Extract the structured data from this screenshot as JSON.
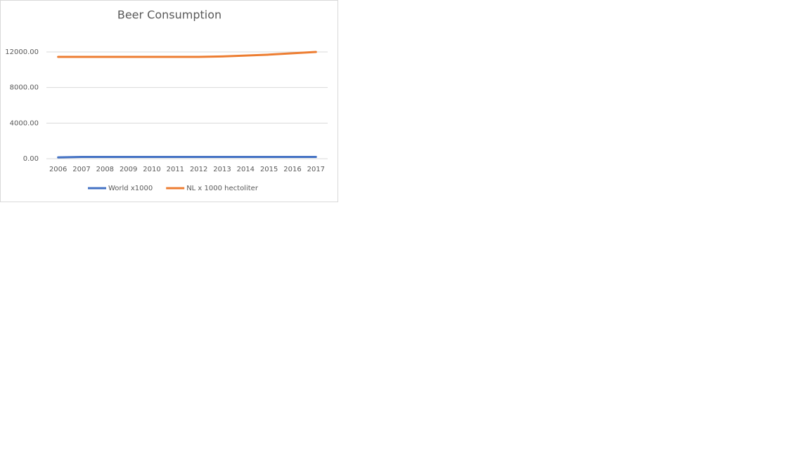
{
  "chart_data": {
    "type": "line",
    "title": "Beer Consumption",
    "categories": [
      "2006",
      "2007",
      "2008",
      "2009",
      "2010",
      "2011",
      "2012",
      "2013",
      "2014",
      "2015",
      "2016",
      "2017"
    ],
    "series": [
      {
        "name": "World x1000",
        "color": "#4472c4",
        "values": [
          150,
          200,
          200,
          200,
          200,
          200,
          200,
          200,
          200,
          200,
          200,
          200
        ]
      },
      {
        "name": "NL x 1000 hectoliter",
        "color": "#ed7d31",
        "values": [
          11450,
          11450,
          11450,
          11450,
          11450,
          11450,
          11450,
          11500,
          11600,
          11700,
          11850,
          12000
        ]
      }
    ],
    "ylim": [
      0,
      12000
    ],
    "yticks": [
      {
        "value": 0,
        "label": "0.00"
      },
      {
        "value": 4000,
        "label": "4000.00"
      },
      {
        "value": 8000,
        "label": "8000.00"
      },
      {
        "value": 12000,
        "label": "12000.00"
      }
    ],
    "grid": true,
    "legend": "bottom"
  }
}
